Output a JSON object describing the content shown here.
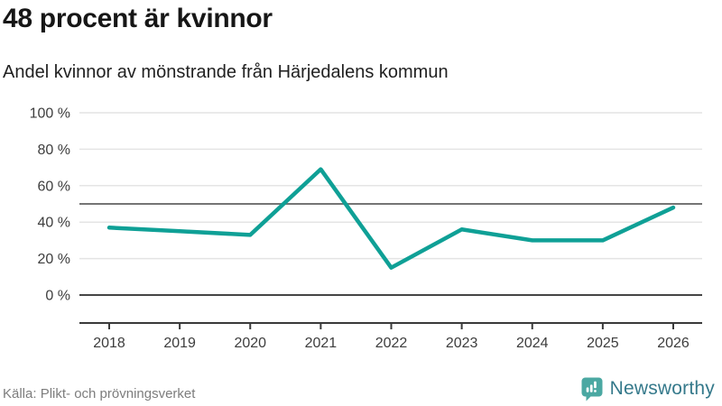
{
  "header": {
    "title": "48 procent är kvinnor",
    "subtitle": "Andel kvinnor av mönstrande från Härjedalens kommun"
  },
  "footer": {
    "source": "Källa: Plikt- och prövningsverket",
    "brand": "Newsworthy"
  },
  "colors": {
    "line": "#0fa096",
    "grid_line": "#e4e4e4",
    "zero_line": "#454545",
    "axis_line": "#3a3a3a",
    "reference_line": "#757575",
    "axis_text": "#3d3d3d",
    "brand_icon": "#4ba8a2",
    "brand_text": "#35798b"
  },
  "chart_data": {
    "type": "line",
    "title": "48 procent är kvinnor",
    "subtitle": "Andel kvinnor av mönstrande från Härjedalens kommun",
    "source": "Källa: Plikt- och prövningsverket",
    "x": [
      2018,
      2019,
      2020,
      2021,
      2022,
      2023,
      2024,
      2025,
      2026
    ],
    "xtick_labels": [
      "2018",
      "2019",
      "2020",
      "2021",
      "2022",
      "2023",
      "2024",
      "2025",
      "2026"
    ],
    "series": [
      {
        "name": "Andel kvinnor av mönstrande",
        "values": [
          37,
          35,
          33,
          69,
          15,
          36,
          30,
          30,
          48
        ]
      }
    ],
    "unit": "%",
    "ylim": [
      0,
      100
    ],
    "yticks": [
      0,
      20,
      40,
      60,
      80,
      100
    ],
    "ytick_labels": [
      "0 %",
      "20 %",
      "40 %",
      "60 %",
      "80 %",
      "100 %"
    ],
    "reference_line_y": 50,
    "grid": true,
    "legend": false
  }
}
